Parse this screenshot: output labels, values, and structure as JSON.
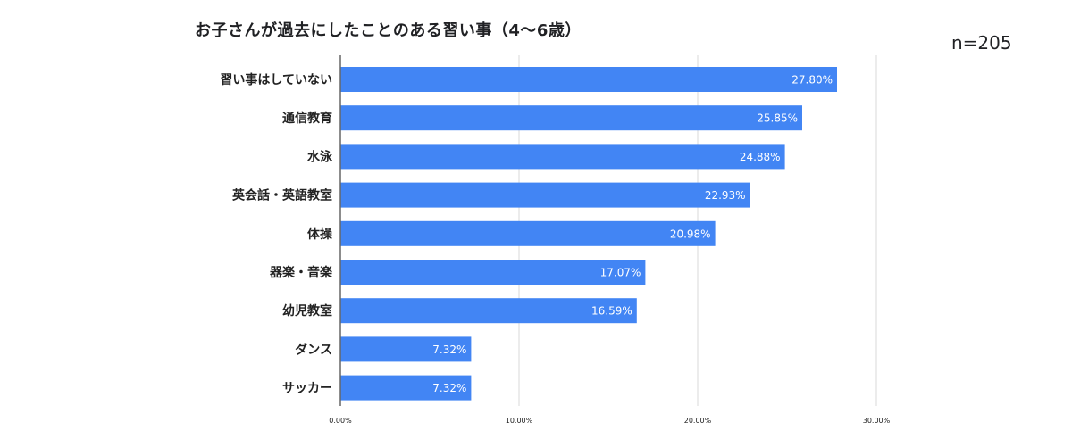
{
  "header": {
    "title": "お子さんが過去にしたことのある習い事（4〜6歳）",
    "sample_size": "n=205"
  },
  "colors": {
    "bar": "#4285f4",
    "grid": "#d9d9d9",
    "axis": "#666666"
  },
  "chart_data": {
    "type": "bar",
    "orientation": "horizontal",
    "title": "お子さんが過去にしたことのある習い事（4〜6歳）",
    "annotation": "n=205",
    "categories": [
      "習い事はしていない",
      "通信教育",
      "水泳",
      "英会話・英語教室",
      "体操",
      "器楽・音楽",
      "幼児教室",
      "ダンス",
      "サッカー"
    ],
    "values": [
      27.8,
      25.85,
      24.88,
      22.93,
      20.98,
      17.07,
      16.59,
      7.32,
      7.32
    ],
    "value_labels": [
      "27.80%",
      "25.85%",
      "24.88%",
      "22.93%",
      "20.98%",
      "17.07%",
      "16.59%",
      "7.32%",
      "7.32%"
    ],
    "xlim": [
      0,
      30
    ],
    "xticks": [
      0,
      10,
      20,
      30
    ],
    "xtick_labels": [
      "0.00%",
      "10.00%",
      "20.00%",
      "30.00%"
    ],
    "grid": true,
    "legend": "none"
  }
}
